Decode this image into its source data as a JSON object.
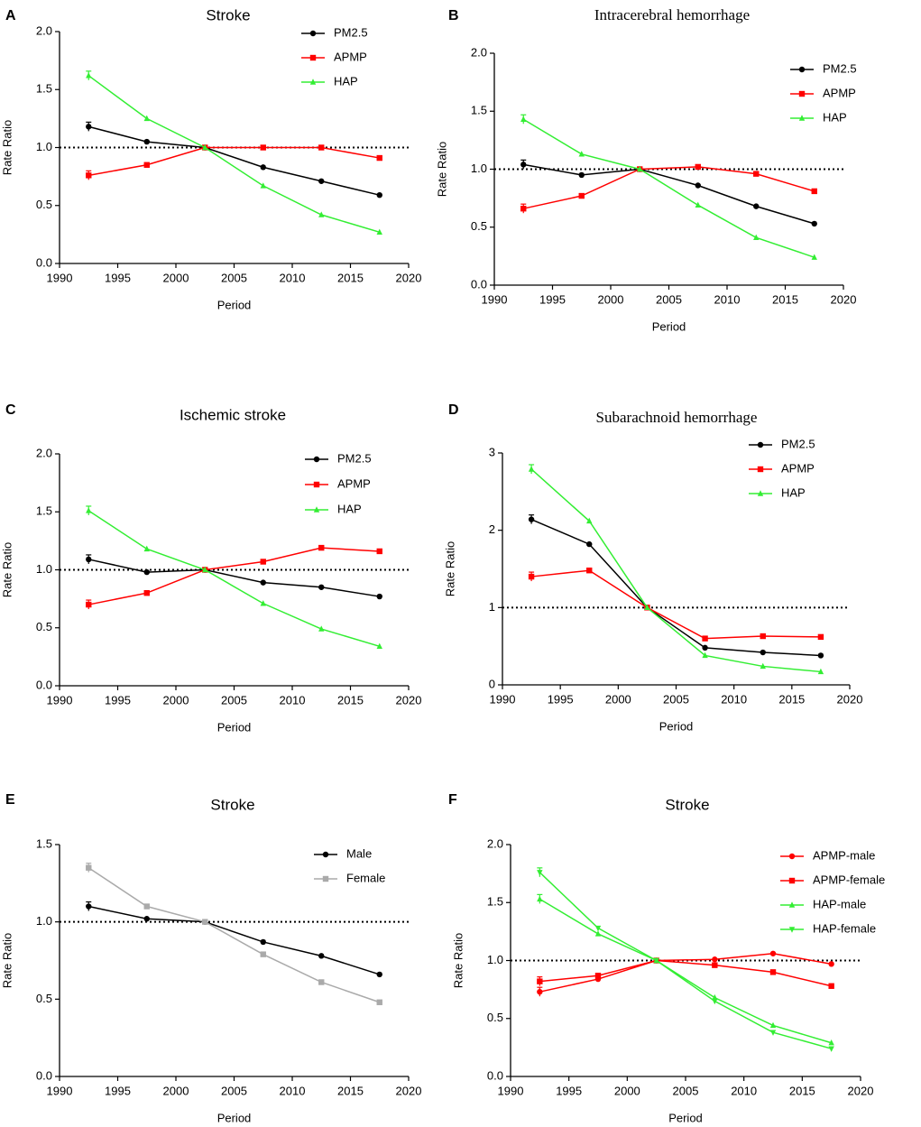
{
  "colors": {
    "black": "#000000",
    "red": "#ff0000",
    "green": "#33ee33",
    "gray": "#aaaaaa"
  },
  "chart_data": [
    {
      "panel": "A",
      "type": "line",
      "title": "Stroke",
      "title_font": "sans",
      "xlabel": "Period",
      "ylabel": "Rate Ratio",
      "xlim": [
        1990,
        2020
      ],
      "xticks": [
        1990,
        1995,
        2000,
        2005,
        2010,
        2015,
        2020
      ],
      "ylim": [
        0,
        2.0
      ],
      "yticks": [
        "0.0",
        "0.5",
        "1.0",
        "1.5",
        "2.0"
      ],
      "reference_line": 1.0,
      "x": [
        1992.5,
        1997.5,
        2002.5,
        2007.5,
        2012.5,
        2017.5
      ],
      "series": [
        {
          "name": "PM2.5",
          "color": "black",
          "marker": "circle",
          "values": [
            1.18,
            1.05,
            1.0,
            0.83,
            0.71,
            0.59
          ]
        },
        {
          "name": "APMP",
          "color": "red",
          "marker": "square",
          "values": [
            0.76,
            0.85,
            1.0,
            1.0,
            1.0,
            0.91
          ]
        },
        {
          "name": "HAP",
          "color": "green",
          "marker": "triangle",
          "values": [
            1.62,
            1.25,
            1.0,
            0.67,
            0.42,
            0.27
          ]
        }
      ],
      "legend_position": "top-right"
    },
    {
      "panel": "B",
      "type": "line",
      "title": "Intracerebral hemorrhage",
      "title_font": "serif",
      "xlabel": "Period",
      "ylabel": "Rate Ratio",
      "xlim": [
        1990,
        2020
      ],
      "xticks": [
        1990,
        1995,
        2000,
        2005,
        2010,
        2015,
        2020
      ],
      "ylim": [
        0,
        2.0
      ],
      "yticks": [
        "0.0",
        "0.5",
        "1.0",
        "1.5",
        "2.0"
      ],
      "reference_line": 1.0,
      "x": [
        1992.5,
        1997.5,
        2002.5,
        2007.5,
        2012.5,
        2017.5
      ],
      "series": [
        {
          "name": "PM2.5",
          "color": "black",
          "marker": "circle",
          "values": [
            1.04,
            0.95,
            1.0,
            0.86,
            0.68,
            0.53
          ]
        },
        {
          "name": "APMP",
          "color": "red",
          "marker": "square",
          "values": [
            0.66,
            0.77,
            1.0,
            1.02,
            0.96,
            0.81
          ]
        },
        {
          "name": "HAP",
          "color": "green",
          "marker": "triangle",
          "values": [
            1.43,
            1.13,
            1.0,
            0.69,
            0.41,
            0.24
          ]
        }
      ],
      "legend_position": "top-right"
    },
    {
      "panel": "C",
      "type": "line",
      "title": "Ischemic stroke",
      "title_font": "sans",
      "xlabel": "Period",
      "ylabel": "Rate Ratio",
      "xlim": [
        1990,
        2020
      ],
      "xticks": [
        1990,
        1995,
        2000,
        2005,
        2010,
        2015,
        2020
      ],
      "ylim": [
        0,
        2.0
      ],
      "yticks": [
        "0.0",
        "0.5",
        "1.0",
        "1.5",
        "2.0"
      ],
      "reference_line": 1.0,
      "x": [
        1992.5,
        1997.5,
        2002.5,
        2007.5,
        2012.5,
        2017.5
      ],
      "series": [
        {
          "name": "PM2.5",
          "color": "black",
          "marker": "circle",
          "values": [
            1.09,
            0.98,
            1.0,
            0.89,
            0.85,
            0.77
          ]
        },
        {
          "name": "APMP",
          "color": "red",
          "marker": "square",
          "values": [
            0.7,
            0.8,
            1.0,
            1.07,
            1.19,
            1.16
          ]
        },
        {
          "name": "HAP",
          "color": "green",
          "marker": "triangle",
          "values": [
            1.51,
            1.18,
            1.0,
            0.71,
            0.49,
            0.34
          ]
        }
      ],
      "legend_position": "top-right"
    },
    {
      "panel": "D",
      "type": "line",
      "title": "Subarachnoid hemorrhage",
      "title_font": "serif",
      "xlabel": "Period",
      "ylabel": "Rate Ratio",
      "xlim": [
        1990,
        2020
      ],
      "xticks": [
        1990,
        1995,
        2000,
        2005,
        2010,
        2015,
        2020
      ],
      "ylim": [
        0,
        3
      ],
      "yticks": [
        "0",
        "1",
        "2",
        "3"
      ],
      "reference_line": 1.0,
      "x": [
        1992.5,
        1997.5,
        2002.5,
        2007.5,
        2012.5,
        2017.5
      ],
      "series": [
        {
          "name": "PM2.5",
          "color": "black",
          "marker": "circle",
          "values": [
            2.14,
            1.82,
            1.0,
            0.48,
            0.42,
            0.38
          ]
        },
        {
          "name": "APMP",
          "color": "red",
          "marker": "square",
          "values": [
            1.4,
            1.48,
            1.0,
            0.6,
            0.63,
            0.62
          ]
        },
        {
          "name": "HAP",
          "color": "green",
          "marker": "triangle",
          "values": [
            2.79,
            2.12,
            1.0,
            0.38,
            0.24,
            0.17
          ]
        }
      ],
      "legend_position": "top-right"
    },
    {
      "panel": "E",
      "type": "line",
      "title": "Stroke",
      "title_font": "sans",
      "xlabel": "Period",
      "ylabel": "Rate Ratio",
      "xlim": [
        1990,
        2020
      ],
      "xticks": [
        1990,
        1995,
        2000,
        2005,
        2010,
        2015,
        2020
      ],
      "ylim": [
        0,
        1.5
      ],
      "yticks": [
        "0.0",
        "0.5",
        "1.0",
        "1.5"
      ],
      "reference_line": 1.0,
      "x": [
        1992.5,
        1997.5,
        2002.5,
        2007.5,
        2012.5,
        2017.5
      ],
      "series": [
        {
          "name": "Male",
          "color": "black",
          "marker": "circle",
          "values": [
            1.1,
            1.02,
            1.0,
            0.87,
            0.78,
            0.66
          ]
        },
        {
          "name": "Female",
          "color": "gray",
          "marker": "square",
          "values": [
            1.35,
            1.1,
            1.0,
            0.79,
            0.61,
            0.48
          ]
        }
      ],
      "legend_position": "top-right"
    },
    {
      "panel": "F",
      "type": "line",
      "title": "Stroke",
      "title_font": "sans",
      "xlabel": "Period",
      "ylabel": "Rate Ratio",
      "xlim": [
        1990,
        2020
      ],
      "xticks": [
        1990,
        1995,
        2000,
        2005,
        2010,
        2015,
        2020
      ],
      "ylim": [
        0,
        2.0
      ],
      "yticks": [
        "0.0",
        "0.5",
        "1.0",
        "1.5",
        "2.0"
      ],
      "reference_line": 1.0,
      "x": [
        1992.5,
        1997.5,
        2002.5,
        2007.5,
        2012.5,
        2017.5
      ],
      "series": [
        {
          "name": "APMP-male",
          "color": "red",
          "marker": "circle",
          "values": [
            0.73,
            0.84,
            1.0,
            1.01,
            1.06,
            0.97
          ]
        },
        {
          "name": "APMP-female",
          "color": "red",
          "marker": "square",
          "values": [
            0.82,
            0.87,
            1.0,
            0.96,
            0.9,
            0.78
          ]
        },
        {
          "name": "HAP-male",
          "color": "green",
          "marker": "triangle",
          "values": [
            1.53,
            1.23,
            1.0,
            0.68,
            0.44,
            0.29
          ]
        },
        {
          "name": "HAP-female",
          "color": "green",
          "marker": "triangle-down",
          "values": [
            1.76,
            1.28,
            1.0,
            0.65,
            0.38,
            0.24
          ]
        }
      ],
      "legend_position": "top-right"
    }
  ]
}
